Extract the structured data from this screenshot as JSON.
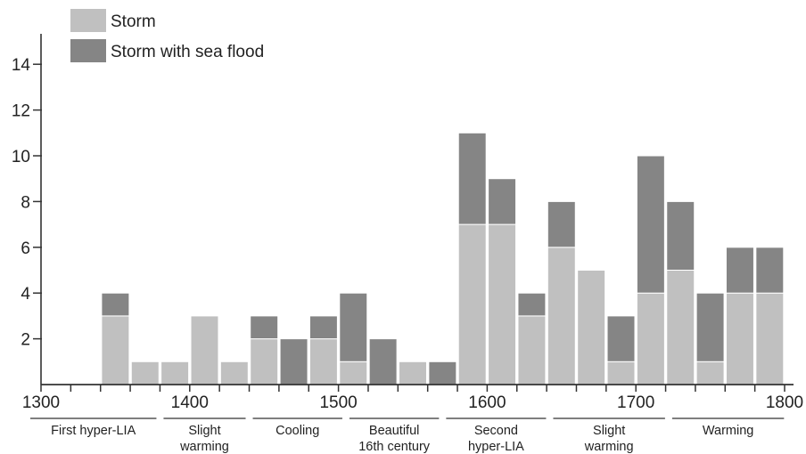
{
  "chart_data": {
    "type": "bar",
    "stacked": true,
    "title": "",
    "xlabel": "",
    "ylabel": "",
    "xlim": [
      1300,
      1800
    ],
    "ylim": [
      0,
      15
    ],
    "x_ticks": [
      1300,
      1400,
      1500,
      1600,
      1700,
      1800
    ],
    "y_ticks": [
      2,
      4,
      6,
      8,
      10,
      12,
      14
    ],
    "bin_width": 20,
    "bins": [
      [
        1340,
        1360
      ],
      [
        1360,
        1380
      ],
      [
        1380,
        1400
      ],
      [
        1400,
        1420
      ],
      [
        1420,
        1440
      ],
      [
        1440,
        1460
      ],
      [
        1460,
        1480
      ],
      [
        1480,
        1500
      ],
      [
        1500,
        1520
      ],
      [
        1520,
        1540
      ],
      [
        1540,
        1560
      ],
      [
        1560,
        1580
      ],
      [
        1580,
        1600
      ],
      [
        1600,
        1620
      ],
      [
        1620,
        1640
      ],
      [
        1640,
        1660
      ],
      [
        1660,
        1680
      ],
      [
        1680,
        1700
      ],
      [
        1700,
        1720
      ],
      [
        1720,
        1740
      ],
      [
        1740,
        1760
      ],
      [
        1760,
        1780
      ],
      [
        1780,
        1800
      ]
    ],
    "series": [
      {
        "name": "Storm",
        "color": "#c0c0c0",
        "values": [
          3,
          1,
          1,
          3,
          1,
          2,
          0,
          2,
          1,
          0,
          1,
          0,
          7,
          7,
          3,
          6,
          5,
          1,
          4,
          5,
          1,
          4,
          4
        ]
      },
      {
        "name": "Storm with sea flood",
        "color": "#858585",
        "values": [
          1,
          0,
          0,
          0,
          0,
          1,
          2,
          1,
          3,
          2,
          0,
          1,
          4,
          2,
          1,
          2,
          0,
          2,
          6,
          3,
          3,
          2,
          2
        ]
      }
    ],
    "legend": {
      "placement": "top-left"
    },
    "periods": [
      {
        "label": "First hyper-LIA",
        "start": 1300,
        "end": 1380
      },
      {
        "label": "Slight\nwarming",
        "start": 1380,
        "end": 1440
      },
      {
        "label": "Cooling",
        "start": 1440,
        "end": 1505
      },
      {
        "label": "Beautiful\n16th century",
        "start": 1505,
        "end": 1570
      },
      {
        "label": "Second\nhyper-LIA",
        "start": 1570,
        "end": 1642
      },
      {
        "label": "Slight\nwarming",
        "start": 1642,
        "end": 1722
      },
      {
        "label": "Warming",
        "start": 1722,
        "end": 1802
      }
    ]
  }
}
